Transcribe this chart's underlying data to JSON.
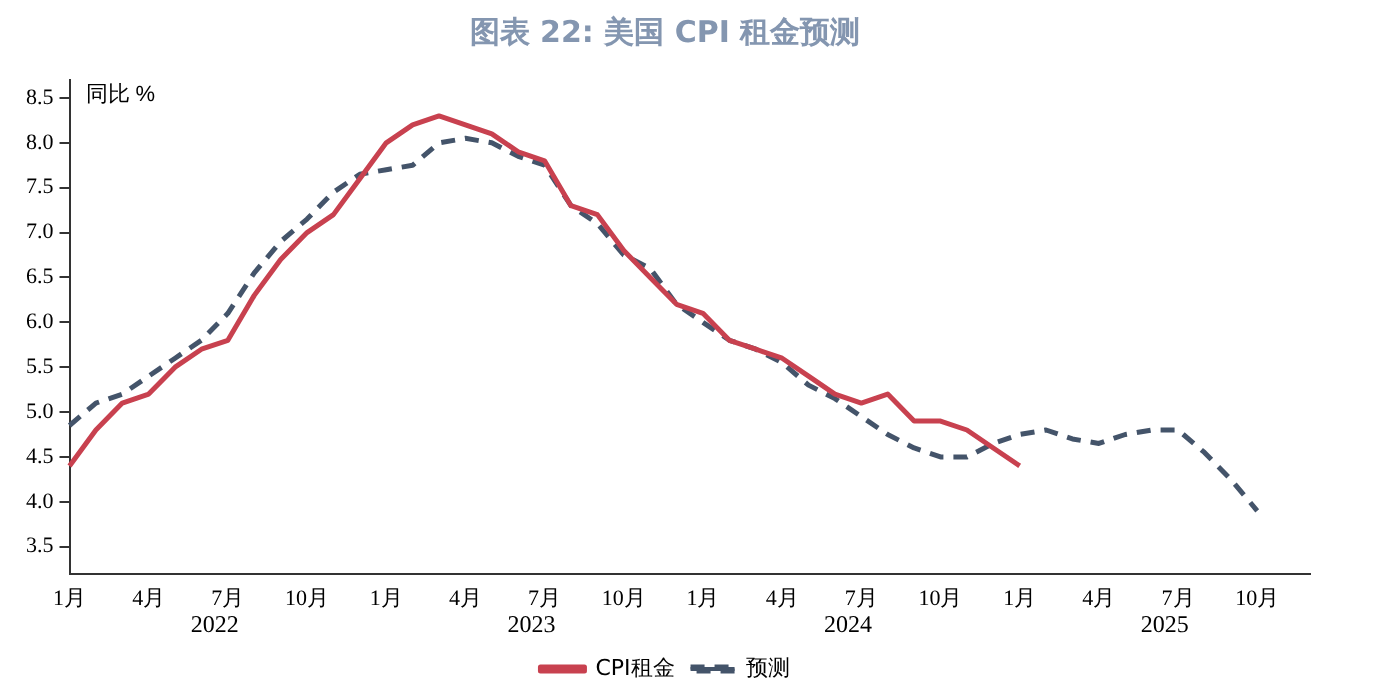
{
  "chart_data": {
    "type": "line",
    "title": "图表 22: 美国 CPI 租金预测",
    "ylabel": "同比 %",
    "categories": [
      "1月",
      null,
      null,
      "4月",
      null,
      null,
      "7月",
      null,
      null,
      "10月",
      null,
      null,
      "1月",
      null,
      null,
      "4月",
      null,
      null,
      "7月",
      null,
      null,
      "10月",
      null,
      null,
      "1月",
      null,
      null,
      "4月",
      null,
      null,
      "7月",
      null,
      null,
      "10月",
      null,
      null,
      "1月",
      null,
      null,
      "4月",
      null,
      null,
      "7月",
      null,
      null,
      "10月",
      null,
      null
    ],
    "annotations": [
      "2022",
      "2023",
      "2024",
      "2025"
    ],
    "series": [
      {
        "name": "CPI租金",
        "color": "#c8414f",
        "line_style": "solid",
        "values": [
          4.4,
          4.8,
          5.1,
          5.2,
          5.5,
          5.7,
          5.8,
          6.3,
          6.7,
          7.0,
          7.2,
          7.6,
          8.0,
          8.2,
          8.3,
          8.2,
          8.1,
          7.9,
          7.8,
          7.3,
          7.2,
          6.8,
          6.5,
          6.2,
          6.1,
          5.8,
          5.7,
          5.6,
          5.4,
          5.2,
          5.1,
          5.2,
          4.9,
          4.9,
          4.8,
          4.6,
          4.4,
          null,
          null,
          null,
          null,
          null,
          null,
          null,
          null,
          null,
          null,
          null
        ]
      },
      {
        "name": "预测",
        "color": "#44546a",
        "line_style": "dashed",
        "values": [
          4.85,
          5.1,
          5.2,
          5.4,
          5.6,
          5.8,
          6.1,
          6.55,
          6.9,
          7.15,
          7.45,
          7.65,
          7.7,
          7.75,
          8.0,
          8.05,
          8.0,
          7.85,
          7.75,
          7.3,
          7.1,
          6.75,
          6.6,
          6.2,
          6.0,
          5.8,
          5.7,
          5.55,
          5.3,
          5.15,
          4.95,
          4.75,
          4.6,
          4.5,
          4.5,
          4.65,
          4.75,
          4.8,
          4.7,
          4.65,
          4.75,
          4.8,
          4.8,
          4.55,
          4.25,
          3.9,
          null,
          null
        ]
      }
    ],
    "ylim": [
      3.2,
      8.7
    ],
    "yticks": [
      3.5,
      {
        "value": 4,
        "label": "4.0"
      },
      4.5,
      {
        "value": 5,
        "label": "5.0"
      },
      5.5,
      {
        "value": 6,
        "label": "6.0"
      },
      6.5,
      {
        "value": 7,
        "label": "7.0"
      },
      7.5,
      {
        "value": 8,
        "label": "8.0"
      },
      8.5
    ],
    "grid": false,
    "legend": "bottom",
    "marker": "none"
  }
}
